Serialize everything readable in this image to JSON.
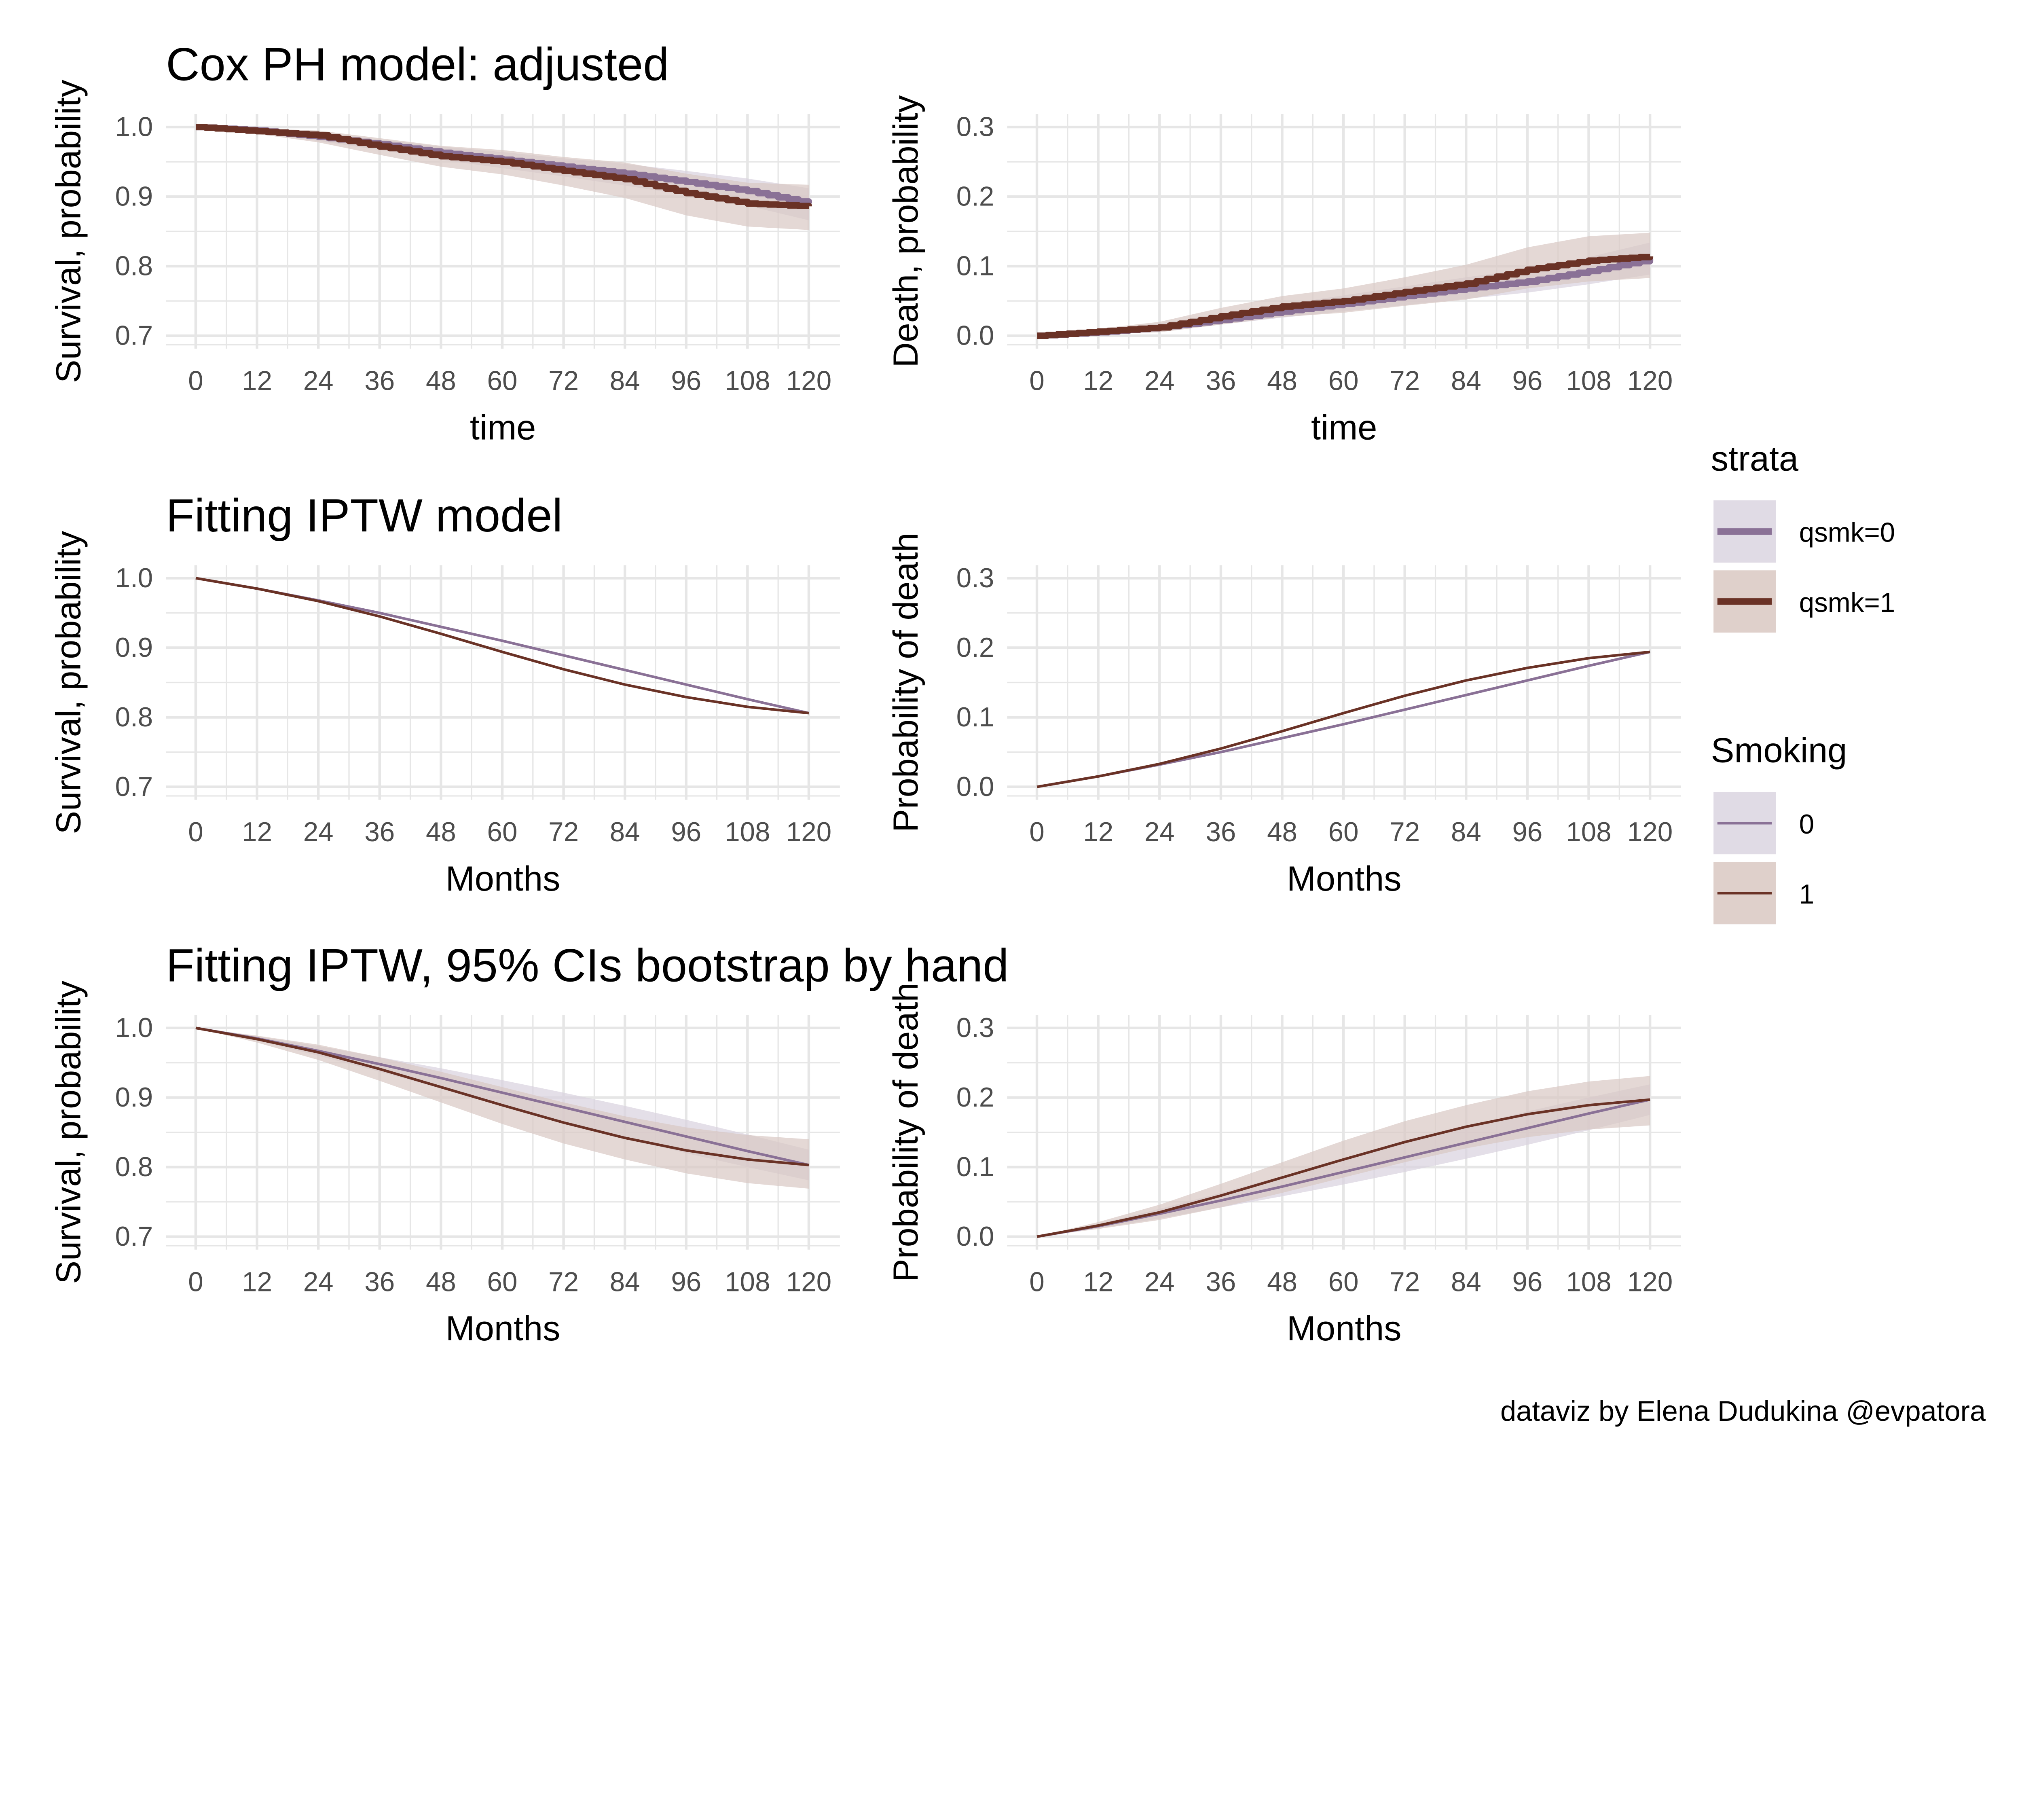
{
  "colors": {
    "qsmk0": "#8a7196",
    "qsmk1": "#6a3226",
    "band0": "#d8d2de",
    "band1": "#d9c8c3",
    "grid": "#e6e6e6"
  },
  "legend": {
    "strata": {
      "title": "strata",
      "items": [
        "qsmk=0",
        "qsmk=1"
      ]
    },
    "smoking": {
      "title": "Smoking",
      "items": [
        "0",
        "1"
      ]
    }
  },
  "caption": "dataviz by Elena Dudukina @evpatora",
  "chart_data": [
    {
      "type": "line",
      "style": "step-thick",
      "title": "Cox PH model: adjusted",
      "xlabel": "time",
      "ylabel": "Survival, probability",
      "xlim": [
        0,
        120
      ],
      "ylim": [
        0.7,
        1.0
      ],
      "xticks": [
        "0",
        "12",
        "24",
        "36",
        "48",
        "60",
        "72",
        "84",
        "96",
        "108",
        "120"
      ],
      "yticks": [
        "0.7",
        "0.8",
        "0.9",
        "1.0"
      ],
      "grid": true,
      "x": [
        0,
        12,
        24,
        36,
        48,
        60,
        72,
        84,
        96,
        108,
        120
      ],
      "series": [
        {
          "name": "qsmk=0",
          "values": [
            1.0,
            0.995,
            0.986,
            0.975,
            0.963,
            0.953,
            0.943,
            0.933,
            0.921,
            0.908,
            0.89
          ],
          "lower": [
            1.0,
            0.992,
            0.98,
            0.967,
            0.953,
            0.941,
            0.929,
            0.916,
            0.902,
            0.887,
            0.866
          ],
          "upper": [
            1.0,
            0.998,
            0.991,
            0.982,
            0.972,
            0.964,
            0.955,
            0.947,
            0.937,
            0.926,
            0.912
          ]
        },
        {
          "name": "qsmk=1",
          "values": [
            1.0,
            0.994,
            0.988,
            0.972,
            0.958,
            0.95,
            0.937,
            0.925,
            0.905,
            0.89,
            0.886
          ],
          "lower": [
            1.0,
            0.99,
            0.978,
            0.96,
            0.943,
            0.932,
            0.916,
            0.898,
            0.873,
            0.857,
            0.852
          ],
          "upper": [
            1.0,
            0.998,
            0.995,
            0.984,
            0.973,
            0.967,
            0.957,
            0.949,
            0.933,
            0.92,
            0.917
          ]
        }
      ]
    },
    {
      "type": "line",
      "style": "step-thick",
      "title": "",
      "xlabel": "time",
      "ylabel": "Death, probability",
      "xlim": [
        0,
        120
      ],
      "ylim": [
        0.0,
        0.3
      ],
      "xticks": [
        "0",
        "12",
        "24",
        "36",
        "48",
        "60",
        "72",
        "84",
        "96",
        "108",
        "120"
      ],
      "yticks": [
        "0.0",
        "0.1",
        "0.2",
        "0.3"
      ],
      "grid": true,
      "x": [
        0,
        12,
        24,
        36,
        48,
        60,
        72,
        84,
        96,
        108,
        120
      ],
      "series": [
        {
          "name": "qsmk=0",
          "values": [
            0.0,
            0.005,
            0.012,
            0.023,
            0.035,
            0.046,
            0.057,
            0.068,
            0.078,
            0.093,
            0.11
          ],
          "lower": [
            0.0,
            0.002,
            0.007,
            0.016,
            0.026,
            0.035,
            0.044,
            0.053,
            0.062,
            0.074,
            0.088
          ],
          "upper": [
            0.0,
            0.008,
            0.018,
            0.031,
            0.045,
            0.058,
            0.071,
            0.084,
            0.096,
            0.113,
            0.134
          ]
        },
        {
          "name": "qsmk=1",
          "values": [
            0.0,
            0.006,
            0.012,
            0.028,
            0.042,
            0.05,
            0.063,
            0.075,
            0.095,
            0.108,
            0.114
          ],
          "lower": [
            0.0,
            0.002,
            0.005,
            0.016,
            0.027,
            0.033,
            0.043,
            0.052,
            0.068,
            0.078,
            0.083
          ],
          "upper": [
            0.0,
            0.01,
            0.02,
            0.04,
            0.057,
            0.068,
            0.084,
            0.102,
            0.127,
            0.143,
            0.148
          ]
        }
      ]
    },
    {
      "type": "line",
      "title": "Fitting IPTW model",
      "xlabel": "Months",
      "ylabel": "Survival, probability",
      "xlim": [
        0,
        120
      ],
      "ylim": [
        0.7,
        1.0
      ],
      "xticks": [
        "0",
        "12",
        "24",
        "36",
        "48",
        "60",
        "72",
        "84",
        "96",
        "108",
        "120"
      ],
      "yticks": [
        "0.7",
        "0.8",
        "0.9",
        "1.0"
      ],
      "grid": true,
      "x": [
        0,
        12,
        24,
        36,
        48,
        60,
        72,
        84,
        96,
        108,
        120
      ],
      "series": [
        {
          "name": "0",
          "values": [
            1.0,
            0.985,
            0.968,
            0.95,
            0.93,
            0.91,
            0.889,
            0.868,
            0.847,
            0.826,
            0.806
          ]
        },
        {
          "name": "1",
          "values": [
            1.0,
            0.985,
            0.967,
            0.945,
            0.92,
            0.894,
            0.869,
            0.847,
            0.829,
            0.815,
            0.806
          ]
        }
      ]
    },
    {
      "type": "line",
      "title": "",
      "xlabel": "Months",
      "ylabel": "Probability of death",
      "xlim": [
        0,
        120
      ],
      "ylim": [
        0.0,
        0.3
      ],
      "xticks": [
        "0",
        "12",
        "24",
        "36",
        "48",
        "60",
        "72",
        "84",
        "96",
        "108",
        "120"
      ],
      "yticks": [
        "0.0",
        "0.1",
        "0.2",
        "0.3"
      ],
      "grid": true,
      "x": [
        0,
        12,
        24,
        36,
        48,
        60,
        72,
        84,
        96,
        108,
        120
      ],
      "series": [
        {
          "name": "0",
          "values": [
            0.0,
            0.015,
            0.032,
            0.05,
            0.07,
            0.09,
            0.111,
            0.132,
            0.153,
            0.174,
            0.194
          ]
        },
        {
          "name": "1",
          "values": [
            0.0,
            0.015,
            0.033,
            0.055,
            0.08,
            0.106,
            0.131,
            0.153,
            0.171,
            0.185,
            0.194
          ]
        }
      ]
    },
    {
      "type": "line",
      "title": "Fitting IPTW, 95% CIs bootstrap by hand",
      "xlabel": "Months",
      "ylabel": "Survival, probability",
      "xlim": [
        0,
        120
      ],
      "ylim": [
        0.7,
        1.0
      ],
      "xticks": [
        "0",
        "12",
        "24",
        "36",
        "48",
        "60",
        "72",
        "84",
        "96",
        "108",
        "120"
      ],
      "yticks": [
        "0.7",
        "0.8",
        "0.9",
        "1.0"
      ],
      "grid": true,
      "x": [
        0,
        12,
        24,
        36,
        48,
        60,
        72,
        84,
        96,
        108,
        120
      ],
      "series": [
        {
          "name": "0",
          "values": [
            1.0,
            0.985,
            0.967,
            0.948,
            0.928,
            0.907,
            0.886,
            0.865,
            0.844,
            0.823,
            0.803
          ],
          "lower": [
            1.0,
            0.982,
            0.96,
            0.937,
            0.913,
            0.889,
            0.865,
            0.842,
            0.82,
            0.8,
            0.781
          ],
          "upper": [
            1.0,
            0.988,
            0.974,
            0.958,
            0.942,
            0.925,
            0.907,
            0.888,
            0.868,
            0.847,
            0.825
          ]
        },
        {
          "name": "1",
          "values": [
            1.0,
            0.984,
            0.965,
            0.941,
            0.915,
            0.889,
            0.864,
            0.842,
            0.824,
            0.811,
            0.803
          ],
          "lower": [
            1.0,
            0.979,
            0.954,
            0.924,
            0.893,
            0.862,
            0.834,
            0.811,
            0.791,
            0.777,
            0.769
          ],
          "upper": [
            1.0,
            0.989,
            0.976,
            0.958,
            0.937,
            0.915,
            0.893,
            0.873,
            0.857,
            0.846,
            0.84
          ]
        }
      ]
    },
    {
      "type": "line",
      "title": "",
      "xlabel": "Months",
      "ylabel": "Probability of death",
      "xlim": [
        0,
        120
      ],
      "ylim": [
        0.0,
        0.3
      ],
      "xticks": [
        "0",
        "12",
        "24",
        "36",
        "48",
        "60",
        "72",
        "84",
        "96",
        "108",
        "120"
      ],
      "yticks": [
        "0.0",
        "0.1",
        "0.2",
        "0.3"
      ],
      "grid": true,
      "x": [
        0,
        12,
        24,
        36,
        48,
        60,
        72,
        84,
        96,
        108,
        120
      ],
      "series": [
        {
          "name": "0",
          "values": [
            0.0,
            0.015,
            0.033,
            0.052,
            0.072,
            0.093,
            0.114,
            0.135,
            0.156,
            0.177,
            0.197
          ],
          "lower": [
            0.0,
            0.012,
            0.026,
            0.042,
            0.058,
            0.075,
            0.093,
            0.112,
            0.132,
            0.153,
            0.175
          ],
          "upper": [
            0.0,
            0.018,
            0.04,
            0.063,
            0.087,
            0.111,
            0.135,
            0.158,
            0.18,
            0.2,
            0.219
          ]
        },
        {
          "name": "1",
          "values": [
            0.0,
            0.016,
            0.035,
            0.059,
            0.085,
            0.111,
            0.136,
            0.158,
            0.176,
            0.189,
            0.197
          ],
          "lower": [
            0.0,
            0.011,
            0.024,
            0.042,
            0.063,
            0.085,
            0.107,
            0.127,
            0.143,
            0.154,
            0.16
          ],
          "upper": [
            0.0,
            0.021,
            0.046,
            0.076,
            0.107,
            0.138,
            0.166,
            0.189,
            0.209,
            0.223,
            0.231
          ]
        }
      ]
    }
  ]
}
